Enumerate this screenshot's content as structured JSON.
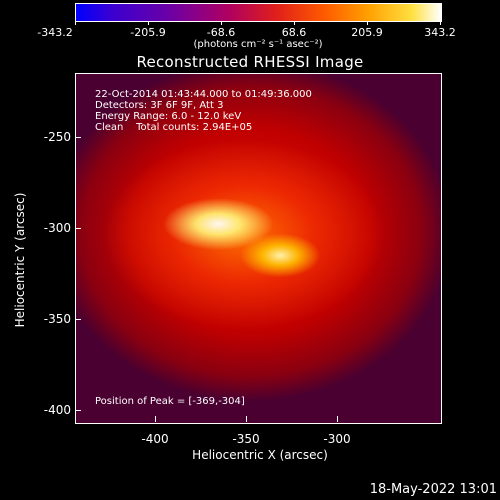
{
  "colorbar": {
    "ticks": [
      "-343.2",
      "-205.9",
      "-68.6",
      "68.6",
      "205.9",
      "343.2"
    ],
    "units": "(photons cm⁻² s⁻¹ asec⁻²)"
  },
  "title": "Reconstructed RHESSI Image",
  "annotation": {
    "line1": "22-Oct-2014 01:43:44.000 to 01:49:36.000",
    "line2": "Detectors: 3F 6F 9F, Att 3",
    "line3": "Energy Range: 6.0 - 12.0 keV",
    "line4": "Clean    Total counts: 2.94E+05"
  },
  "peak": "Position of Peak = [-369,-304]",
  "axes": {
    "xlabel": "Heliocentric X (arcsec)",
    "ylabel": "Heliocentric Y (arcsec)",
    "xticks": [
      "-400",
      "-350",
      "-300"
    ],
    "yticks": [
      "-250",
      "-300",
      "-350",
      "-400"
    ]
  },
  "timestamp": "18-May-2022 13:01",
  "colors": {
    "background": "#000000",
    "peak_core": "#ffffff",
    "emission": "#ff5a00",
    "low": "#0000ff"
  }
}
